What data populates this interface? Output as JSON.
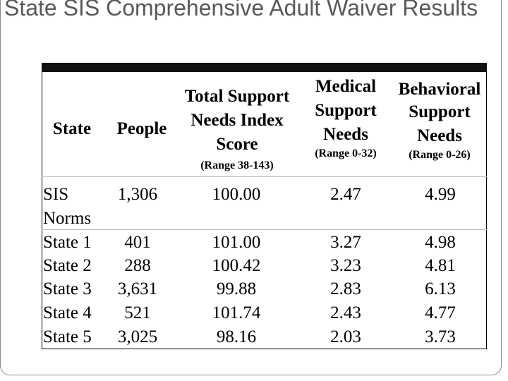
{
  "title": "State SIS Comprehensive Adult Waiver Results",
  "headers": {
    "state": "State",
    "people": "People",
    "total_support": [
      "Total Support",
      "Needs Index",
      "Score"
    ],
    "total_support_range": "(Range 38-143)",
    "medical": [
      "Medical",
      "Support",
      "Needs"
    ],
    "medical_range": "(Range 0-32)",
    "behavioral": [
      "Behavioral",
      "Support",
      "Needs"
    ],
    "behavioral_range": "(Range 0-26)"
  },
  "rows": [
    {
      "state": [
        "SIS",
        "Norms"
      ],
      "people": "1,306",
      "total": "100.00",
      "medical": "2.47",
      "behavioral": "4.99"
    },
    {
      "state": "State 1",
      "people": "401",
      "total": "101.00",
      "medical": "3.27",
      "behavioral": "4.98"
    },
    {
      "state": "State 2",
      "people": "288",
      "total": "100.42",
      "medical": "3.23",
      "behavioral": "4.81"
    },
    {
      "state": "State 3",
      "people": "3,631",
      "total": "99.88",
      "medical": "2.83",
      "behavioral": "6.13"
    },
    {
      "state": "State 4",
      "people": "521",
      "total": "101.74",
      "medical": "2.43",
      "behavioral": "4.77"
    },
    {
      "state": "State 5",
      "people": "3,025",
      "total": "98.16",
      "medical": "2.03",
      "behavioral": "3.73"
    }
  ]
}
